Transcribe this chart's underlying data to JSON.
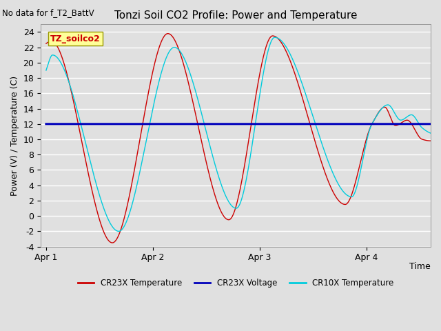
{
  "title": "Tonzi Soil CO2 Profile: Power and Temperature",
  "no_data_label": "No data for f_T2_BattV",
  "ylabel": "Power (V) / Temperature (C)",
  "xlabel": "Time",
  "ylim": [
    -4,
    25
  ],
  "yticks": [
    -4,
    -2,
    0,
    2,
    4,
    6,
    8,
    10,
    12,
    14,
    16,
    18,
    20,
    22,
    24
  ],
  "xtick_labels": [
    "Apr 1",
    "Apr 2",
    "Apr 3",
    "Apr 4"
  ],
  "xtick_positions": [
    0.0,
    1.0,
    2.0,
    3.0
  ],
  "xlim": [
    -0.05,
    3.6
  ],
  "bg_color": "#e0e0e0",
  "plot_bg_color": "#e0e0e0",
  "grid_color": "#ffffff",
  "legend_box_color": "#ffff99",
  "legend_box_edge": "#999900",
  "inset_label": "TZ_soilco2",
  "cr23x_color": "#cc0000",
  "cr23x_voltage_color": "#0000bb",
  "cr10x_color": "#00ccdd",
  "voltage_value": 12.0,
  "legend_entries": [
    "CR23X Temperature",
    "CR23X Voltage",
    "CR10X Temperature"
  ]
}
